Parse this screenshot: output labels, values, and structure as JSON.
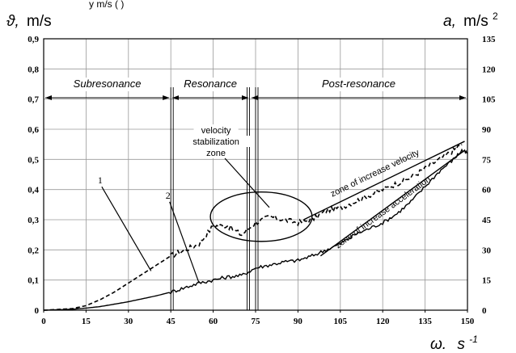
{
  "top_caption": "y        m/s                    (        )",
  "chart_data": {
    "type": "line",
    "y_left_label_symbol": "ϑ,",
    "y_left_label_unit": "m/s",
    "y_right_label_symbol": "a,",
    "y_right_label_unit": "m/s",
    "y_right_label_sup": "2",
    "x_label_symbol": "ω.",
    "x_label_unit": "s",
    "x_label_sup": "-1",
    "xlim": [
      0,
      150
    ],
    "ylim_left": [
      0,
      0.9
    ],
    "ylim_right": [
      0,
      135
    ],
    "x_ticks": [
      0,
      15,
      30,
      45,
      60,
      75,
      90,
      105,
      120,
      135,
      150
    ],
    "x_tick_labels": [
      "0",
      "15",
      "30",
      "45",
      "60",
      "75",
      "90",
      "105",
      "120",
      "135",
      "150"
    ],
    "y_left_ticks": [
      0,
      0.1,
      0.2,
      0.3,
      0.4,
      0.5,
      0.6,
      0.7,
      0.8,
      0.9
    ],
    "y_left_tick_labels": [
      "0",
      "0,1",
      "0,2",
      "0,3",
      "0,4",
      "0,5",
      "0,6",
      "0,7",
      "0,8",
      "0,9"
    ],
    "y_right_ticks": [
      0,
      15,
      30,
      45,
      60,
      75,
      90,
      105,
      120,
      135
    ],
    "y_right_tick_labels": [
      "0",
      "15",
      "30",
      "45",
      "60",
      "75",
      "90",
      "105",
      "120",
      "135"
    ],
    "grid": true,
    "zones": [
      {
        "label": "Subresonance",
        "x_start": 0,
        "x_end": 45
      },
      {
        "label": "Resonance",
        "x_start": 45,
        "x_end": 73
      },
      {
        "label": "Post-resonance",
        "x_start": 73,
        "x_end": 150
      }
    ],
    "zone_boundaries_x": [
      45,
      72,
      75
    ],
    "series": [
      {
        "name": "1",
        "style": "dashed",
        "x": [
          0,
          10,
          15,
          20,
          25,
          30,
          35,
          40,
          45,
          50,
          55,
          60,
          65,
          70,
          75,
          80,
          85,
          90,
          95,
          100,
          105,
          110,
          115,
          120,
          125,
          130,
          135,
          140,
          145,
          148
        ],
        "y": [
          0,
          0.005,
          0.015,
          0.035,
          0.06,
          0.09,
          0.12,
          0.15,
          0.18,
          0.2,
          0.22,
          0.28,
          0.28,
          0.25,
          0.29,
          0.31,
          0.3,
          0.29,
          0.3,
          0.33,
          0.34,
          0.36,
          0.38,
          0.4,
          0.42,
          0.44,
          0.47,
          0.5,
          0.53,
          0.55
        ]
      },
      {
        "name": "2",
        "style": "solid",
        "x": [
          0,
          10,
          15,
          20,
          25,
          30,
          35,
          40,
          45,
          50,
          55,
          60,
          65,
          70,
          75,
          80,
          85,
          90,
          95,
          100,
          105,
          110,
          115,
          120,
          125,
          130,
          135,
          140,
          145,
          148,
          150
        ],
        "y": [
          0,
          0.003,
          0.007,
          0.012,
          0.02,
          0.028,
          0.038,
          0.048,
          0.06,
          0.075,
          0.09,
          0.1,
          0.11,
          0.115,
          0.14,
          0.15,
          0.16,
          0.165,
          0.18,
          0.2,
          0.22,
          0.25,
          0.27,
          0.29,
          0.32,
          0.36,
          0.41,
          0.46,
          0.5,
          0.53,
          0.52
        ]
      }
    ],
    "trend_lines": [
      {
        "label": "zone of increase velocity",
        "x": [
          92,
          149
        ],
        "y": [
          0.3,
          0.56
        ]
      },
      {
        "label": "zone of increase acceleration",
        "x": [
          98,
          149
        ],
        "y": [
          0.18,
          0.53
        ]
      }
    ],
    "annotations": {
      "stabilization_label": [
        "velocity",
        "stabilization",
        "zone"
      ],
      "stabilization_ellipse": {
        "cx": 77,
        "cy": 0.31,
        "rx": 18,
        "ry": 0.082
      },
      "leader_from": [
        73,
        0.5
      ],
      "leader_to": [
        77,
        0.33
      ],
      "curve_labels": [
        {
          "text": "1",
          "at": [
            20,
            0.42
          ],
          "points_to": [
            38,
            0.13
          ]
        },
        {
          "text": "2",
          "at": [
            44,
            0.37
          ],
          "points_to": [
            55,
            0.09
          ]
        }
      ]
    }
  }
}
